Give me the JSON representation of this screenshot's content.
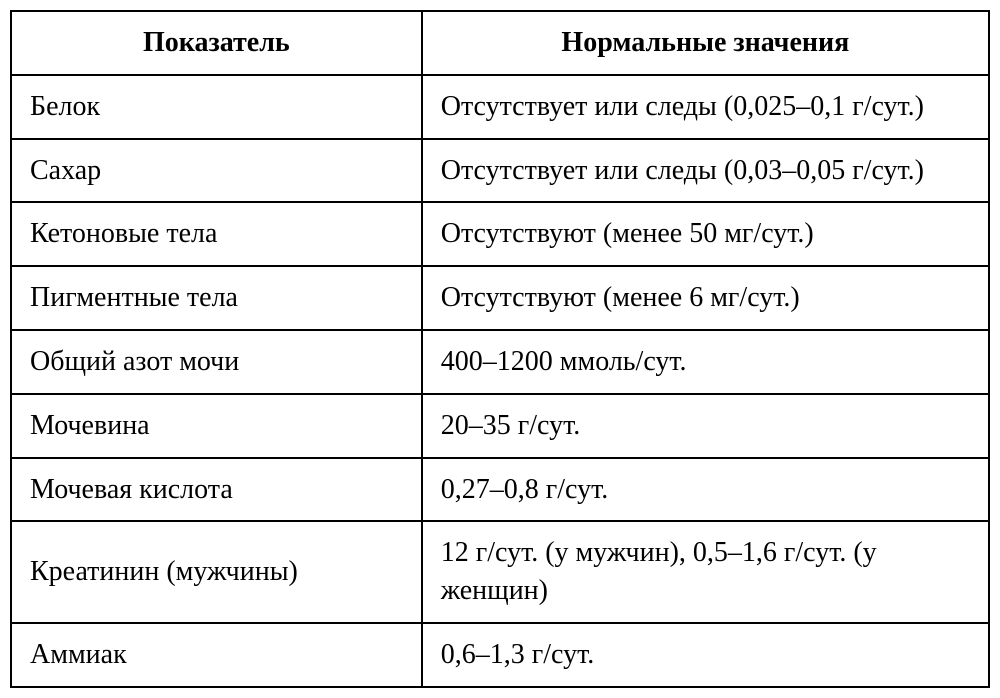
{
  "table": {
    "type": "table",
    "border_color": "#000000",
    "background_color": "#ffffff",
    "text_color": "#000000",
    "font_family": "Georgia, serif",
    "header_fontsize": 28,
    "cell_fontsize": 28,
    "header_fontweight": "bold",
    "border_width": 2,
    "columns": [
      {
        "label": "Показатель",
        "width_pct": 42,
        "align": "left",
        "header_align": "center"
      },
      {
        "label": "Нормальные значения",
        "width_pct": 58,
        "align": "left",
        "header_align": "center"
      }
    ],
    "rows": [
      [
        "Белок",
        "Отсутствует или следы (0,025–0,1 г/сут.)"
      ],
      [
        "Сахар",
        "Отсутствует или следы (0,03–0,05 г/сут.)"
      ],
      [
        "Кетоновые тела",
        "Отсутствуют (менее 50 мг/сут.)"
      ],
      [
        "Пигментные тела",
        "Отсутствуют (менее 6 мг/сут.)"
      ],
      [
        "Общий азот мочи",
        "400–1200 ммоль/сут."
      ],
      [
        "Мочевина",
        "20–35 г/сут."
      ],
      [
        "Мочевая кислота",
        "0,27–0,8 г/сут."
      ],
      [
        "Креатинин (мужчины)",
        "12 г/сут. (у мужчин), 0,5–1,6 г/сут. (у женщин)"
      ],
      [
        "Аммиак",
        "0,6–1,3 г/сут."
      ]
    ]
  }
}
